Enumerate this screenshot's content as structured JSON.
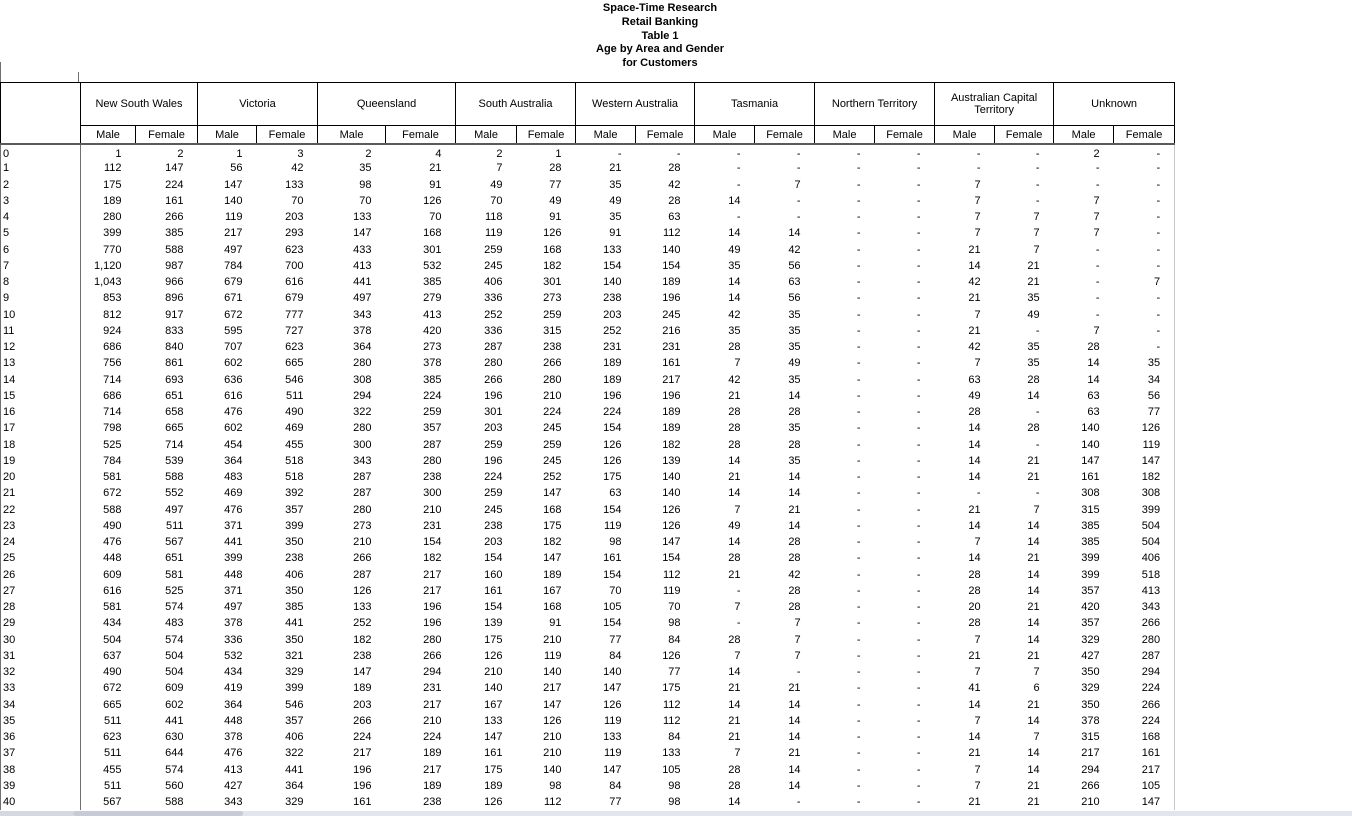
{
  "title_lines": [
    "Space-Time Research",
    "Retail Banking",
    "Table 1",
    "Age by Area and Gender",
    "for Customers"
  ],
  "columns": {
    "groups": [
      {
        "label": "New South Wales"
      },
      {
        "label": "Victoria"
      },
      {
        "label": "Queensland"
      },
      {
        "label": "South Australia"
      },
      {
        "label": "Western Australia"
      },
      {
        "label": "Tasmania"
      },
      {
        "label": "Northern Territory"
      },
      {
        "label": "Australian Capital Territory"
      },
      {
        "label": "Unknown"
      }
    ],
    "sub_labels": [
      "Male",
      "Female"
    ]
  },
  "rows": [
    {
      "age": "0",
      "values": [
        "1",
        "2",
        "1",
        "3",
        "2",
        "4",
        "2",
        "1",
        "-",
        "-",
        "-",
        "-",
        "-",
        "-",
        "-",
        "-",
        "2",
        "-"
      ]
    },
    {
      "age": "1",
      "values": [
        "112",
        "147",
        "56",
        "42",
        "35",
        "21",
        "7",
        "28",
        "21",
        "28",
        "-",
        "-",
        "-",
        "-",
        "-",
        "-",
        "-",
        "-"
      ]
    },
    {
      "age": "2",
      "values": [
        "175",
        "224",
        "147",
        "133",
        "98",
        "91",
        "49",
        "77",
        "35",
        "42",
        "-",
        "7",
        "-",
        "-",
        "7",
        "-",
        "-",
        "-"
      ]
    },
    {
      "age": "3",
      "values": [
        "189",
        "161",
        "140",
        "70",
        "70",
        "126",
        "70",
        "49",
        "49",
        "28",
        "14",
        "-",
        "-",
        "-",
        "7",
        "-",
        "7",
        "-"
      ]
    },
    {
      "age": "4",
      "values": [
        "280",
        "266",
        "119",
        "203",
        "133",
        "70",
        "118",
        "91",
        "35",
        "63",
        "-",
        "-",
        "-",
        "-",
        "7",
        "7",
        "7",
        "-"
      ]
    },
    {
      "age": "5",
      "values": [
        "399",
        "385",
        "217",
        "293",
        "147",
        "168",
        "119",
        "126",
        "91",
        "112",
        "14",
        "14",
        "-",
        "-",
        "7",
        "7",
        "7",
        "-"
      ]
    },
    {
      "age": "6",
      "values": [
        "770",
        "588",
        "497",
        "623",
        "433",
        "301",
        "259",
        "168",
        "133",
        "140",
        "49",
        "42",
        "-",
        "-",
        "21",
        "7",
        "-",
        "-"
      ]
    },
    {
      "age": "7",
      "values": [
        "1,120",
        "987",
        "784",
        "700",
        "413",
        "532",
        "245",
        "182",
        "154",
        "154",
        "35",
        "56",
        "-",
        "-",
        "14",
        "21",
        "-",
        "-"
      ]
    },
    {
      "age": "8",
      "values": [
        "1,043",
        "966",
        "679",
        "616",
        "441",
        "385",
        "406",
        "301",
        "140",
        "189",
        "14",
        "63",
        "-",
        "-",
        "42",
        "21",
        "-",
        "7"
      ]
    },
    {
      "age": "9",
      "values": [
        "853",
        "896",
        "671",
        "679",
        "497",
        "279",
        "336",
        "273",
        "238",
        "196",
        "14",
        "56",
        "-",
        "-",
        "21",
        "35",
        "-",
        "-"
      ]
    },
    {
      "age": "10",
      "values": [
        "812",
        "917",
        "672",
        "777",
        "343",
        "413",
        "252",
        "259",
        "203",
        "245",
        "42",
        "35",
        "-",
        "-",
        "7",
        "49",
        "-",
        "-"
      ]
    },
    {
      "age": "11",
      "values": [
        "924",
        "833",
        "595",
        "727",
        "378",
        "420",
        "336",
        "315",
        "252",
        "216",
        "35",
        "35",
        "-",
        "-",
        "21",
        "-",
        "7",
        "-"
      ]
    },
    {
      "age": "12",
      "values": [
        "686",
        "840",
        "707",
        "623",
        "364",
        "273",
        "287",
        "238",
        "231",
        "231",
        "28",
        "35",
        "-",
        "-",
        "42",
        "35",
        "28",
        "-"
      ]
    },
    {
      "age": "13",
      "values": [
        "756",
        "861",
        "602",
        "665",
        "280",
        "378",
        "280",
        "266",
        "189",
        "161",
        "7",
        "49",
        "-",
        "-",
        "7",
        "35",
        "14",
        "35"
      ]
    },
    {
      "age": "14",
      "values": [
        "714",
        "693",
        "636",
        "546",
        "308",
        "385",
        "266",
        "280",
        "189",
        "217",
        "42",
        "35",
        "-",
        "-",
        "63",
        "28",
        "14",
        "34"
      ]
    },
    {
      "age": "15",
      "values": [
        "686",
        "651",
        "616",
        "511",
        "294",
        "224",
        "196",
        "210",
        "196",
        "196",
        "21",
        "14",
        "-",
        "-",
        "49",
        "14",
        "63",
        "56"
      ]
    },
    {
      "age": "16",
      "values": [
        "714",
        "658",
        "476",
        "490",
        "322",
        "259",
        "301",
        "224",
        "224",
        "189",
        "28",
        "28",
        "-",
        "-",
        "28",
        "-",
        "63",
        "77"
      ]
    },
    {
      "age": "17",
      "values": [
        "798",
        "665",
        "602",
        "469",
        "280",
        "357",
        "203",
        "245",
        "154",
        "189",
        "28",
        "35",
        "-",
        "-",
        "14",
        "28",
        "140",
        "126"
      ]
    },
    {
      "age": "18",
      "values": [
        "525",
        "714",
        "454",
        "455",
        "300",
        "287",
        "259",
        "259",
        "126",
        "182",
        "28",
        "28",
        "-",
        "-",
        "14",
        "-",
        "140",
        "119"
      ]
    },
    {
      "age": "19",
      "values": [
        "784",
        "539",
        "364",
        "518",
        "343",
        "280",
        "196",
        "245",
        "126",
        "139",
        "14",
        "35",
        "-",
        "-",
        "14",
        "21",
        "147",
        "147"
      ]
    },
    {
      "age": "20",
      "values": [
        "581",
        "588",
        "483",
        "518",
        "287",
        "238",
        "224",
        "252",
        "175",
        "140",
        "21",
        "14",
        "-",
        "-",
        "14",
        "21",
        "161",
        "182"
      ]
    },
    {
      "age": "21",
      "values": [
        "672",
        "552",
        "469",
        "392",
        "287",
        "300",
        "259",
        "147",
        "63",
        "140",
        "14",
        "14",
        "-",
        "-",
        "-",
        "-",
        "308",
        "308"
      ]
    },
    {
      "age": "22",
      "values": [
        "588",
        "497",
        "476",
        "357",
        "280",
        "210",
        "245",
        "168",
        "154",
        "126",
        "7",
        "21",
        "-",
        "-",
        "21",
        "7",
        "315",
        "399"
      ]
    },
    {
      "age": "23",
      "values": [
        "490",
        "511",
        "371",
        "399",
        "273",
        "231",
        "238",
        "175",
        "119",
        "126",
        "49",
        "14",
        "-",
        "-",
        "14",
        "14",
        "385",
        "504"
      ]
    },
    {
      "age": "24",
      "values": [
        "476",
        "567",
        "441",
        "350",
        "210",
        "154",
        "203",
        "182",
        "98",
        "147",
        "14",
        "28",
        "-",
        "-",
        "7",
        "14",
        "385",
        "504"
      ]
    },
    {
      "age": "25",
      "values": [
        "448",
        "651",
        "399",
        "238",
        "266",
        "182",
        "154",
        "147",
        "161",
        "154",
        "28",
        "28",
        "-",
        "-",
        "14",
        "21",
        "399",
        "406"
      ]
    },
    {
      "age": "26",
      "values": [
        "609",
        "581",
        "448",
        "406",
        "287",
        "217",
        "160",
        "189",
        "154",
        "112",
        "21",
        "42",
        "-",
        "-",
        "28",
        "14",
        "399",
        "518"
      ]
    },
    {
      "age": "27",
      "values": [
        "616",
        "525",
        "371",
        "350",
        "126",
        "217",
        "161",
        "167",
        "70",
        "119",
        "-",
        "28",
        "-",
        "-",
        "28",
        "14",
        "357",
        "413"
      ]
    },
    {
      "age": "28",
      "values": [
        "581",
        "574",
        "497",
        "385",
        "133",
        "196",
        "154",
        "168",
        "105",
        "70",
        "7",
        "28",
        "-",
        "-",
        "20",
        "21",
        "420",
        "343"
      ]
    },
    {
      "age": "29",
      "values": [
        "434",
        "483",
        "378",
        "441",
        "252",
        "196",
        "139",
        "91",
        "154",
        "98",
        "-",
        "7",
        "-",
        "-",
        "28",
        "14",
        "357",
        "266"
      ]
    },
    {
      "age": "30",
      "values": [
        "504",
        "574",
        "336",
        "350",
        "182",
        "280",
        "175",
        "210",
        "77",
        "84",
        "28",
        "7",
        "-",
        "-",
        "7",
        "14",
        "329",
        "280"
      ]
    },
    {
      "age": "31",
      "values": [
        "637",
        "504",
        "532",
        "321",
        "238",
        "266",
        "126",
        "119",
        "84",
        "126",
        "7",
        "7",
        "-",
        "-",
        "21",
        "21",
        "427",
        "287"
      ]
    },
    {
      "age": "32",
      "values": [
        "490",
        "504",
        "434",
        "329",
        "147",
        "294",
        "210",
        "140",
        "140",
        "77",
        "14",
        "-",
        "-",
        "-",
        "7",
        "7",
        "350",
        "294"
      ]
    },
    {
      "age": "33",
      "values": [
        "672",
        "609",
        "419",
        "399",
        "189",
        "231",
        "140",
        "217",
        "147",
        "175",
        "21",
        "21",
        "-",
        "-",
        "41",
        "6",
        "329",
        "224"
      ]
    },
    {
      "age": "34",
      "values": [
        "665",
        "602",
        "364",
        "546",
        "203",
        "217",
        "167",
        "147",
        "126",
        "112",
        "14",
        "14",
        "-",
        "-",
        "14",
        "21",
        "350",
        "266"
      ]
    },
    {
      "age": "35",
      "values": [
        "511",
        "441",
        "448",
        "357",
        "266",
        "210",
        "133",
        "126",
        "119",
        "112",
        "21",
        "14",
        "-",
        "-",
        "7",
        "14",
        "378",
        "224"
      ]
    },
    {
      "age": "36",
      "values": [
        "623",
        "630",
        "378",
        "406",
        "224",
        "224",
        "147",
        "210",
        "133",
        "84",
        "21",
        "14",
        "-",
        "-",
        "14",
        "7",
        "315",
        "168"
      ]
    },
    {
      "age": "37",
      "values": [
        "511",
        "644",
        "476",
        "322",
        "217",
        "189",
        "161",
        "210",
        "119",
        "133",
        "7",
        "21",
        "-",
        "-",
        "21",
        "14",
        "217",
        "161"
      ]
    },
    {
      "age": "38",
      "values": [
        "455",
        "574",
        "413",
        "441",
        "196",
        "217",
        "175",
        "140",
        "147",
        "105",
        "28",
        "14",
        "-",
        "-",
        "7",
        "14",
        "294",
        "217"
      ]
    },
    {
      "age": "39",
      "values": [
        "511",
        "560",
        "427",
        "364",
        "196",
        "189",
        "189",
        "98",
        "84",
        "98",
        "28",
        "14",
        "-",
        "-",
        "7",
        "21",
        "266",
        "105"
      ]
    },
    {
      "age": "40",
      "values": [
        "567",
        "588",
        "343",
        "329",
        "161",
        "238",
        "126",
        "112",
        "77",
        "98",
        "14",
        "-",
        "-",
        "-",
        "21",
        "21",
        "210",
        "147"
      ]
    }
  ],
  "colors": {
    "background": "#ffffff",
    "text": "#000000",
    "header_border": "#000000",
    "thick_rule": "#5a5a5a",
    "grid_border": "#707070",
    "scrollbar_track": "#e3e5ee",
    "scrollbar_thumb": "#c7cad7"
  }
}
